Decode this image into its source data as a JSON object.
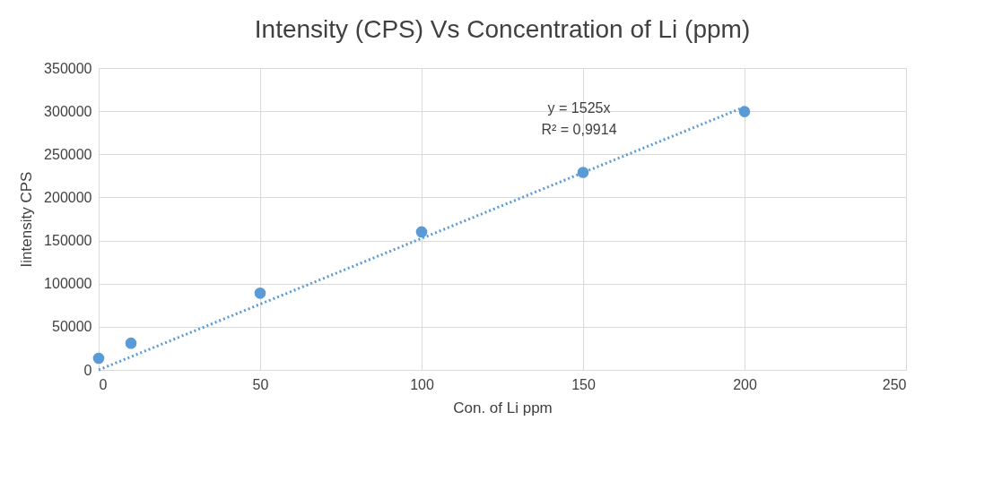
{
  "chart_data": {
    "type": "scatter",
    "title": "Intensity (CPS) Vs Concentration of Li (ppm)",
    "xlabel": "Con. of Li ppm",
    "ylabel": "Iintensity CPS",
    "x": [
      0,
      10,
      50,
      100,
      150,
      200
    ],
    "series": [
      {
        "color": "#5b9bd5",
        "values": [
          13500,
          31000,
          89000,
          160000,
          229000,
          299500
        ],
        "marker": "circle"
      },
      {
        "type": "line",
        "color": "#5b9bd5",
        "x": [
          0,
          200
        ],
        "values": [
          0,
          305000
        ],
        "line_style": "dotted",
        "marker": "none"
      }
    ],
    "annotations": [
      "y = 1525x",
      "R² = 0,9914"
    ],
    "xlim": [
      0,
      250
    ],
    "xticks": [
      0,
      50,
      100,
      150,
      200,
      250
    ],
    "ylim": [
      0,
      350000
    ],
    "yticks": [
      0,
      50000,
      100000,
      150000,
      200000,
      250000,
      300000,
      350000
    ],
    "grid": true
  }
}
